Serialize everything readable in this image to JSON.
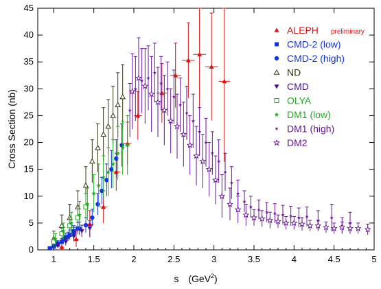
{
  "chart_data": {
    "type": "scatter",
    "title": "",
    "xlabel": "s",
    "xlabel_unit": "(GeV",
    "xlabel_unit_exp": "2",
    "xlabel_unit_close": ")",
    "ylabel": "Cross Section  (nb)",
    "xlim": [
      0.8,
      5.0
    ],
    "ylim": [
      0,
      45
    ],
    "x_ticks": [
      1,
      1.5,
      2,
      2.5,
      3,
      3.5,
      4,
      4.5,
      5
    ],
    "x_tick_labels": [
      "1",
      "1.5",
      "2",
      "2.5",
      "3",
      "3.5",
      "4",
      "4.5",
      "5"
    ],
    "y_ticks": [
      0,
      5,
      10,
      15,
      20,
      25,
      30,
      35,
      40,
      45
    ],
    "y_tick_labels": [
      "0",
      "5",
      "10",
      "15",
      "20",
      "25",
      "30",
      "35",
      "40",
      "45"
    ],
    "grid": false,
    "legend_position": "top-right",
    "series": [
      {
        "name": "ALEPH",
        "name_suffix": "preliminary",
        "marker": "triangle-up-filled",
        "color": "#dd1111",
        "points": [
          {
            "x": 1.1,
            "y": 0.5,
            "err": 0.8,
            "xerr": 0.03
          },
          {
            "x": 1.28,
            "y": 2.0,
            "err": 1.5,
            "xerr": 0.03
          },
          {
            "x": 1.45,
            "y": 4.8,
            "err": 2.5,
            "xerr": 0.05
          },
          {
            "x": 1.62,
            "y": 8.0,
            "err": 3.0,
            "xerr": 0.05
          },
          {
            "x": 1.78,
            "y": 14.5,
            "err": 3.5,
            "xerr": 0.05
          },
          {
            "x": 1.92,
            "y": 19.8,
            "err": 4.0,
            "xerr": 0.05
          },
          {
            "x": 2.05,
            "y": 25.0,
            "err": 4.5,
            "xerr": 0.05
          },
          {
            "x": 2.35,
            "y": 29.2,
            "err": 5.5,
            "xerr": 0.07
          },
          {
            "x": 2.52,
            "y": 32.5,
            "err": 6.0,
            "xerr": 0.07
          },
          {
            "x": 2.68,
            "y": 35.3,
            "err": 7.0,
            "xerr": 0.08
          },
          {
            "x": 2.82,
            "y": 36.4,
            "err": 10.0,
            "xerr": 0.08
          },
          {
            "x": 2.97,
            "y": 34.1,
            "err": 10.0,
            "xerr": 0.08
          },
          {
            "x": 3.13,
            "y": 31.4,
            "err": 15.0,
            "xerr": 0.07
          }
        ]
      },
      {
        "name": "CMD-2 (low)",
        "marker": "square-filled",
        "color": "#1133dd",
        "points": [
          {
            "x": 0.95,
            "y": 0.3,
            "err": 0.3
          },
          {
            "x": 1.0,
            "y": 0.6,
            "err": 0.4
          },
          {
            "x": 1.05,
            "y": 1.0,
            "err": 0.5
          },
          {
            "x": 1.1,
            "y": 1.5,
            "err": 0.6
          },
          {
            "x": 1.15,
            "y": 2.3,
            "err": 0.8
          },
          {
            "x": 1.2,
            "y": 2.8,
            "err": 0.9
          },
          {
            "x": 1.25,
            "y": 3.5,
            "err": 1.0
          },
          {
            "x": 1.3,
            "y": 4.0,
            "err": 1.1
          }
        ]
      },
      {
        "name": "CMD-2 (high)",
        "marker": "circle-filled",
        "color": "#1133dd",
        "points": [
          {
            "x": 1.05,
            "y": 1.2,
            "err": 0.5
          },
          {
            "x": 1.12,
            "y": 2.0,
            "err": 0.7
          },
          {
            "x": 1.18,
            "y": 2.5,
            "err": 0.8
          },
          {
            "x": 1.25,
            "y": 3.2,
            "err": 1.0
          },
          {
            "x": 1.32,
            "y": 4.0,
            "err": 1.2
          },
          {
            "x": 1.4,
            "y": 4.6,
            "err": 1.4
          },
          {
            "x": 1.48,
            "y": 6.0,
            "err": 1.6
          },
          {
            "x": 1.55,
            "y": 8.5,
            "err": 2.0
          },
          {
            "x": 1.6,
            "y": 11.0,
            "err": 2.5
          },
          {
            "x": 1.66,
            "y": 13.0,
            "err": 3.0
          },
          {
            "x": 1.72,
            "y": 15.0,
            "err": 3.5
          },
          {
            "x": 1.78,
            "y": 17.0,
            "err": 3.5
          },
          {
            "x": 1.85,
            "y": 19.5,
            "err": 4.0
          }
        ]
      },
      {
        "name": "ND",
        "marker": "triangle-up-open",
        "color": "#333311",
        "points": [
          {
            "x": 1.0,
            "y": 2.0,
            "err": 1.5
          },
          {
            "x": 1.1,
            "y": 4.5,
            "err": 2.0
          },
          {
            "x": 1.2,
            "y": 6.0,
            "err": 2.5
          },
          {
            "x": 1.3,
            "y": 8.0,
            "err": 3.0
          },
          {
            "x": 1.4,
            "y": 12.0,
            "err": 3.5
          },
          {
            "x": 1.48,
            "y": 16.5,
            "err": 4.0
          },
          {
            "x": 1.55,
            "y": 19.0,
            "err": 4.5
          },
          {
            "x": 1.62,
            "y": 21.5,
            "err": 5.0
          },
          {
            "x": 1.68,
            "y": 23.0,
            "err": 5.0
          },
          {
            "x": 1.74,
            "y": 25.0,
            "err": 5.5
          },
          {
            "x": 1.8,
            "y": 27.0,
            "err": 6.0
          },
          {
            "x": 1.86,
            "y": 28.5,
            "err": 6.0
          }
        ]
      },
      {
        "name": "CMD",
        "marker": "triangle-down-filled",
        "color": "#441199",
        "points": [
          {
            "x": 1.05,
            "y": 0.8,
            "err": 0.5
          },
          {
            "x": 1.15,
            "y": 1.5,
            "err": 0.7
          },
          {
            "x": 1.25,
            "y": 2.5,
            "err": 0.9
          },
          {
            "x": 1.35,
            "y": 3.5,
            "err": 1.1
          },
          {
            "x": 1.45,
            "y": 4.0,
            "err": 1.4
          }
        ]
      },
      {
        "name": "OLYA",
        "marker": "square-open",
        "color": "#22aa22",
        "points": [
          {
            "x": 1.0,
            "y": 1.5,
            "err": 0.8
          },
          {
            "x": 1.1,
            "y": 3.0,
            "err": 1.0
          },
          {
            "x": 1.2,
            "y": 4.5,
            "err": 1.5
          },
          {
            "x": 1.3,
            "y": 6.0,
            "err": 2.0
          },
          {
            "x": 1.4,
            "y": 8.0,
            "err": 2.5
          }
        ]
      },
      {
        "name": "DM1 (low)",
        "marker": "star-filled",
        "color": "#22aa22",
        "points": [
          {
            "x": 1.02,
            "y": 2.0,
            "err": 1.0
          },
          {
            "x": 1.12,
            "y": 3.5,
            "err": 1.5
          },
          {
            "x": 1.22,
            "y": 5.0,
            "err": 2.0
          },
          {
            "x": 1.32,
            "y": 6.5,
            "err": 2.5
          },
          {
            "x": 1.42,
            "y": 8.5,
            "err": 3.0
          },
          {
            "x": 1.5,
            "y": 10.5,
            "err": 3.5
          },
          {
            "x": 1.56,
            "y": 12.0,
            "err": 4.0
          },
          {
            "x": 1.62,
            "y": 13.5,
            "err": 4.0
          },
          {
            "x": 1.68,
            "y": 14.5,
            "err": 4.5
          },
          {
            "x": 1.74,
            "y": 16.0,
            "err": 4.5
          },
          {
            "x": 1.8,
            "y": 18.0,
            "err": 5.0
          },
          {
            "x": 1.86,
            "y": 19.0,
            "err": 5.0
          },
          {
            "x": 1.92,
            "y": 19.5,
            "err": 5.5
          }
        ]
      },
      {
        "name": "DM1 (high)",
        "marker": "star-small-filled",
        "color": "#661199",
        "points": [
          {
            "x": 1.95,
            "y": 26.0,
            "err": 5.0
          },
          {
            "x": 2.02,
            "y": 30.0,
            "err": 6.0
          },
          {
            "x": 2.1,
            "y": 31.5,
            "err": 6.0
          },
          {
            "x": 2.18,
            "y": 32.0,
            "err": 6.0
          },
          {
            "x": 2.26,
            "y": 33.0,
            "err": 5.5
          },
          {
            "x": 2.34,
            "y": 31.0,
            "err": 5.0
          },
          {
            "x": 2.42,
            "y": 30.0,
            "err": 5.0
          },
          {
            "x": 2.5,
            "y": 28.5,
            "err": 5.0
          },
          {
            "x": 2.58,
            "y": 27.0,
            "err": 5.0
          },
          {
            "x": 2.66,
            "y": 25.5,
            "err": 5.0
          },
          {
            "x": 2.74,
            "y": 24.0,
            "err": 5.0
          },
          {
            "x": 2.82,
            "y": 22.0,
            "err": 4.5
          },
          {
            "x": 2.9,
            "y": 20.0,
            "err": 4.5
          },
          {
            "x": 2.98,
            "y": 18.0,
            "err": 4.0
          },
          {
            "x": 3.06,
            "y": 16.5,
            "err": 4.0
          },
          {
            "x": 3.14,
            "y": 14.5,
            "err": 3.5
          },
          {
            "x": 3.22,
            "y": 12.5,
            "err": 3.0
          },
          {
            "x": 3.3,
            "y": 10.5,
            "err": 2.5
          },
          {
            "x": 3.38,
            "y": 9.0,
            "err": 2.0
          },
          {
            "x": 3.46,
            "y": 8.0,
            "err": 2.0
          },
          {
            "x": 3.56,
            "y": 7.5,
            "err": 1.8
          },
          {
            "x": 3.66,
            "y": 7.0,
            "err": 1.8
          },
          {
            "x": 3.76,
            "y": 6.8,
            "err": 1.8
          },
          {
            "x": 3.86,
            "y": 6.5,
            "err": 1.8
          },
          {
            "x": 3.96,
            "y": 6.3,
            "err": 1.8
          },
          {
            "x": 4.06,
            "y": 6.0,
            "err": 1.8
          },
          {
            "x": 4.16,
            "y": 6.2,
            "err": 1.8
          },
          {
            "x": 4.3,
            "y": 5.5,
            "err": 1.8
          },
          {
            "x": 4.47,
            "y": 6.0,
            "err": 2.5
          },
          {
            "x": 4.6,
            "y": 4.5,
            "err": 1.5
          },
          {
            "x": 4.7,
            "y": 5.0,
            "err": 2.0
          }
        ]
      },
      {
        "name": "DM2",
        "marker": "star-open",
        "color": "#661199",
        "points": [
          {
            "x": 1.98,
            "y": 29.5,
            "err": 7.0
          },
          {
            "x": 2.06,
            "y": 32.0,
            "err": 7.5
          },
          {
            "x": 2.14,
            "y": 30.5,
            "err": 7.0
          },
          {
            "x": 2.22,
            "y": 29.0,
            "err": 7.0
          },
          {
            "x": 2.3,
            "y": 27.5,
            "err": 6.5
          },
          {
            "x": 2.38,
            "y": 26.0,
            "err": 6.5
          },
          {
            "x": 2.46,
            "y": 24.0,
            "err": 6.0
          },
          {
            "x": 2.54,
            "y": 23.0,
            "err": 6.0
          },
          {
            "x": 2.62,
            "y": 21.5,
            "err": 6.0
          },
          {
            "x": 2.7,
            "y": 19.5,
            "err": 5.5
          },
          {
            "x": 2.78,
            "y": 17.5,
            "err": 5.5
          },
          {
            "x": 2.86,
            "y": 16.5,
            "err": 5.0
          },
          {
            "x": 2.94,
            "y": 15.0,
            "err": 5.0
          },
          {
            "x": 3.02,
            "y": 13.0,
            "err": 4.5
          },
          {
            "x": 3.1,
            "y": 10.0,
            "err": 4.0
          },
          {
            "x": 3.2,
            "y": 8.5,
            "err": 3.0
          },
          {
            "x": 3.3,
            "y": 7.5,
            "err": 2.5
          },
          {
            "x": 3.4,
            "y": 6.5,
            "err": 2.0
          },
          {
            "x": 3.5,
            "y": 6.0,
            "err": 1.5
          },
          {
            "x": 3.6,
            "y": 5.8,
            "err": 1.5
          },
          {
            "x": 3.7,
            "y": 5.5,
            "err": 1.5
          },
          {
            "x": 3.8,
            "y": 5.3,
            "err": 1.2
          },
          {
            "x": 3.9,
            "y": 5.0,
            "err": 1.2
          },
          {
            "x": 4.0,
            "y": 5.0,
            "err": 1.2
          },
          {
            "x": 4.1,
            "y": 4.8,
            "err": 1.2
          },
          {
            "x": 4.2,
            "y": 4.5,
            "err": 1.0
          },
          {
            "x": 4.3,
            "y": 4.5,
            "err": 1.0
          },
          {
            "x": 4.4,
            "y": 4.2,
            "err": 1.0
          },
          {
            "x": 4.5,
            "y": 4.0,
            "err": 1.0
          },
          {
            "x": 4.6,
            "y": 4.2,
            "err": 1.0
          },
          {
            "x": 4.7,
            "y": 4.0,
            "err": 1.0
          },
          {
            "x": 4.8,
            "y": 4.0,
            "err": 1.0
          },
          {
            "x": 4.92,
            "y": 3.8,
            "err": 1.0
          }
        ]
      }
    ]
  }
}
